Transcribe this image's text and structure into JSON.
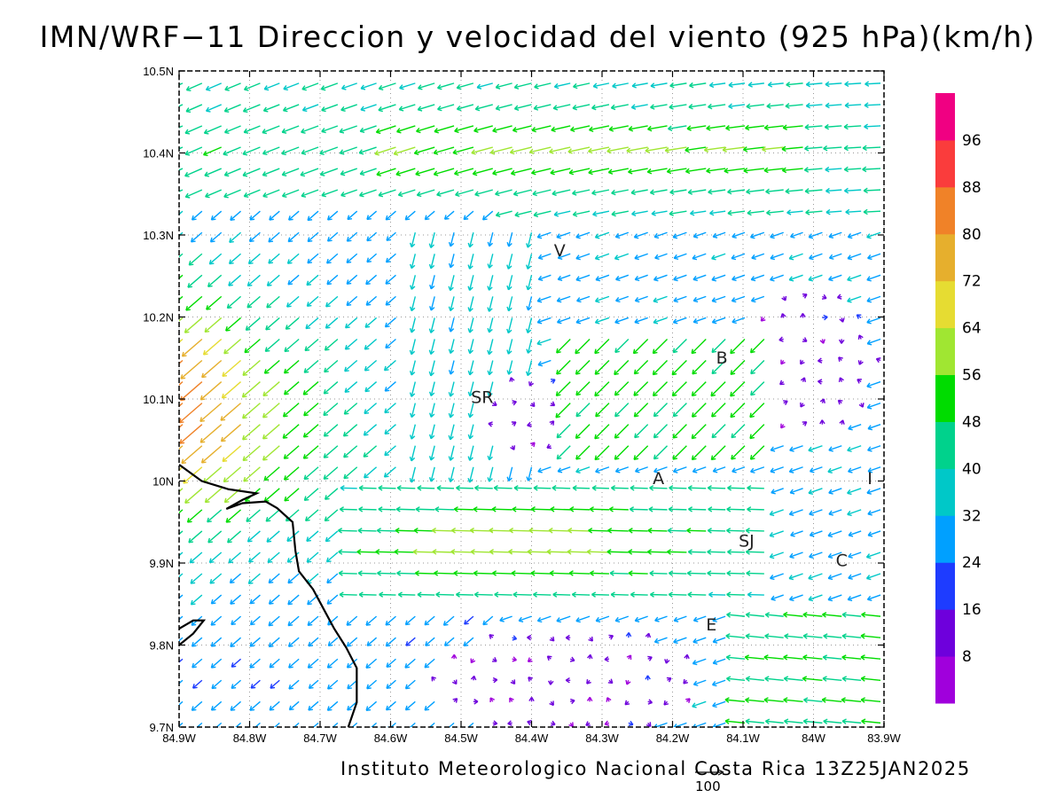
{
  "title": "IMN/WRF−11 Direccion y velocidad del viento (925 hPa)(km/h)",
  "footer": "Instituto Meteorologico Nacional Costa Rica 13Z25JAN2025",
  "map": {
    "lon_range": [
      -84.9,
      -83.9
    ],
    "lat_range": [
      9.7,
      10.5
    ],
    "x_ticks": [
      {
        "value": -84.9,
        "label": "84.9W"
      },
      {
        "value": -84.8,
        "label": "84.8W"
      },
      {
        "value": -84.7,
        "label": "84.7W"
      },
      {
        "value": -84.6,
        "label": "84.6W"
      },
      {
        "value": -84.5,
        "label": "84.5W"
      },
      {
        "value": -84.4,
        "label": "84.4W"
      },
      {
        "value": -84.3,
        "label": "84.3W"
      },
      {
        "value": -84.2,
        "label": "84.2W"
      },
      {
        "value": -84.1,
        "label": "84.1W"
      },
      {
        "value": -84.0,
        "label": "84W"
      },
      {
        "value": -83.9,
        "label": "83.9W"
      }
    ],
    "y_ticks": [
      {
        "value": 9.7,
        "label": "9.7N"
      },
      {
        "value": 9.8,
        "label": "9.8N"
      },
      {
        "value": 9.9,
        "label": "9.9N"
      },
      {
        "value": 10.0,
        "label": "10N"
      },
      {
        "value": 10.1,
        "label": "10.1N"
      },
      {
        "value": 10.2,
        "label": "10.2N"
      },
      {
        "value": 10.3,
        "label": "10.3N"
      },
      {
        "value": 10.4,
        "label": "10.4N"
      },
      {
        "value": 10.5,
        "label": "10.5N"
      }
    ],
    "grid": "dotted",
    "place_labels": [
      {
        "text": "V",
        "lon": -84.36,
        "lat": 10.274
      },
      {
        "text": "B",
        "lon": -84.13,
        "lat": 10.143
      },
      {
        "text": "SR",
        "lon": -84.47,
        "lat": 10.095
      },
      {
        "text": "A",
        "lon": -84.22,
        "lat": 9.996
      },
      {
        "text": "I",
        "lon": -83.92,
        "lat": 9.996
      },
      {
        "text": "SJ",
        "lon": -84.095,
        "lat": 9.92
      },
      {
        "text": "C",
        "lon": -83.96,
        "lat": 9.896
      },
      {
        "text": "E",
        "lon": -84.145,
        "lat": 9.818
      }
    ],
    "coastline": [
      [
        -84.9,
        10.02
      ],
      [
        -84.868,
        10.0
      ],
      [
        -84.83,
        9.99
      ],
      [
        -84.79,
        9.985
      ],
      [
        -84.81,
        9.977
      ],
      [
        -84.833,
        9.966
      ],
      [
        -84.81,
        9.973
      ],
      [
        -84.777,
        9.975
      ],
      [
        -84.761,
        9.967
      ],
      [
        -84.739,
        9.95
      ],
      [
        -84.735,
        9.915
      ],
      [
        -84.73,
        9.89
      ],
      [
        -84.71,
        9.868
      ],
      [
        -84.695,
        9.844
      ],
      [
        -84.68,
        9.82
      ],
      [
        -84.663,
        9.797
      ],
      [
        -84.648,
        9.772
      ],
      [
        -84.648,
        9.73
      ],
      [
        -84.66,
        9.7
      ]
    ],
    "coastline_2": [
      [
        -84.9,
        9.82
      ],
      [
        -84.88,
        9.83
      ],
      [
        -84.865,
        9.83
      ],
      [
        -84.88,
        9.814
      ],
      [
        -84.9,
        9.8
      ]
    ]
  },
  "colorbar": {
    "labels": [
      "8",
      "16",
      "24",
      "32",
      "40",
      "48",
      "56",
      "64",
      "72",
      "80",
      "88",
      "96"
    ],
    "colors": [
      "#a000dc",
      "#6e00dc",
      "#1e3cff",
      "#00a0ff",
      "#00c8c8",
      "#00d28c",
      "#00dc00",
      "#a0e632",
      "#e6dc32",
      "#e6af2d",
      "#f08228",
      "#fa3c3c",
      "#f00082"
    ]
  },
  "scale_vector": {
    "value": 100,
    "label": "100"
  },
  "wind_field": {
    "units": "km/h",
    "dx_deg": 0.0275,
    "dy_deg": 0.026,
    "rows": 31,
    "cols": 37
  }
}
